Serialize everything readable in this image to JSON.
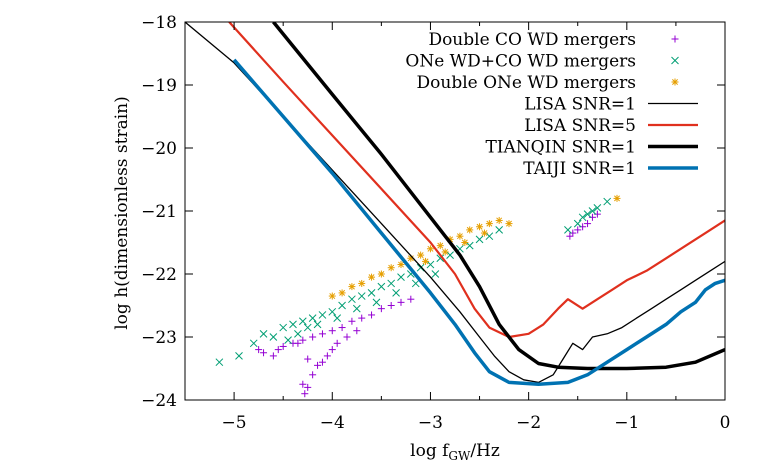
{
  "chart_data": {
    "type": "line",
    "xlabel": "log f",
    "xlabel_sub": "GW",
    "xlabel_unit": "/Hz",
    "ylabel": "log h(dimensionless strain)",
    "xlim": [
      -5.5,
      0
    ],
    "ylim": [
      -24,
      -18
    ],
    "xticks": [
      -5,
      -4,
      -3,
      -2,
      -1,
      0
    ],
    "yticks": [
      -24,
      -23,
      -22,
      -21,
      -20,
      -19,
      -18
    ],
    "xtick_labels": [
      "−5",
      "−4",
      "−3",
      "−2",
      "−1",
      "0"
    ],
    "ytick_labels": [
      "−24",
      "−23",
      "−22",
      "−21",
      "−20",
      "−19",
      "−18"
    ],
    "legend_position": "top-right",
    "colors": {
      "co_co": "#9400d3",
      "one_co": "#009e73",
      "one_one": "#e69f00",
      "lisa": "#000000",
      "lisa5": "#e0301e",
      "tianqin": "#000000",
      "taiji": "#0072b2"
    },
    "scatter_series": [
      {
        "name": "Double CO WD mergers",
        "marker": "+",
        "color": "#9400d3",
        "points": [
          [
            -4.55,
            -23.2
          ],
          [
            -4.6,
            -23.3
          ],
          [
            -4.7,
            -23.25
          ],
          [
            -4.75,
            -23.2
          ],
          [
            -4.4,
            -23.1
          ],
          [
            -4.3,
            -23.05
          ],
          [
            -4.2,
            -23.0
          ],
          [
            -4.1,
            -22.95
          ],
          [
            -4.0,
            -22.9
          ],
          [
            -3.9,
            -22.85
          ],
          [
            -3.8,
            -22.75
          ],
          [
            -3.7,
            -22.7
          ],
          [
            -3.6,
            -22.65
          ],
          [
            -3.5,
            -22.55
          ],
          [
            -3.4,
            -22.5
          ],
          [
            -3.3,
            -22.45
          ],
          [
            -3.2,
            -22.4
          ],
          [
            -4.25,
            -23.35
          ],
          [
            -4.15,
            -23.45
          ],
          [
            -4.2,
            -23.6
          ],
          [
            -4.25,
            -23.8
          ],
          [
            -4.1,
            -23.4
          ],
          [
            -4.05,
            -23.3
          ],
          [
            -4.0,
            -23.2
          ],
          [
            -3.95,
            -23.1
          ],
          [
            -4.3,
            -23.75
          ],
          [
            -4.28,
            -23.9
          ],
          [
            -4.35,
            -23.1
          ],
          [
            -4.5,
            -23.15
          ],
          [
            -3.85,
            -23.0
          ],
          [
            -3.75,
            -22.9
          ],
          [
            -1.55,
            -21.35
          ],
          [
            -1.5,
            -21.3
          ],
          [
            -1.45,
            -21.25
          ],
          [
            -1.4,
            -21.2
          ],
          [
            -1.35,
            -21.1
          ],
          [
            -1.3,
            -21.05
          ],
          [
            -1.58,
            -21.4
          ]
        ]
      },
      {
        "name": "ONe WD+CO WD mergers",
        "marker": "x",
        "color": "#009e73",
        "points": [
          [
            -5.15,
            -23.4
          ],
          [
            -4.95,
            -23.3
          ],
          [
            -4.8,
            -23.1
          ],
          [
            -4.7,
            -22.95
          ],
          [
            -4.6,
            -23.0
          ],
          [
            -4.5,
            -22.85
          ],
          [
            -4.4,
            -22.8
          ],
          [
            -4.3,
            -22.75
          ],
          [
            -4.2,
            -22.7
          ],
          [
            -4.1,
            -22.65
          ],
          [
            -4.0,
            -22.6
          ],
          [
            -3.9,
            -22.5
          ],
          [
            -3.8,
            -22.4
          ],
          [
            -3.7,
            -22.35
          ],
          [
            -3.6,
            -22.3
          ],
          [
            -3.5,
            -22.2
          ],
          [
            -3.4,
            -22.15
          ],
          [
            -3.3,
            -22.05
          ],
          [
            -3.2,
            -22.0
          ],
          [
            -3.1,
            -21.9
          ],
          [
            -3.0,
            -21.85
          ],
          [
            -2.9,
            -21.75
          ],
          [
            -2.8,
            -21.7
          ],
          [
            -2.7,
            -21.6
          ],
          [
            -2.6,
            -21.55
          ],
          [
            -2.5,
            -21.45
          ],
          [
            -2.4,
            -21.4
          ],
          [
            -2.3,
            -21.3
          ],
          [
            -4.45,
            -23.05
          ],
          [
            -4.35,
            -22.95
          ],
          [
            -4.25,
            -22.85
          ],
          [
            -4.15,
            -22.8
          ],
          [
            -3.95,
            -22.7
          ],
          [
            -3.75,
            -22.55
          ],
          [
            -3.55,
            -22.45
          ],
          [
            -3.35,
            -22.3
          ],
          [
            -3.15,
            -22.15
          ],
          [
            -2.95,
            -22.0
          ],
          [
            -1.6,
            -21.3
          ],
          [
            -1.5,
            -21.2
          ],
          [
            -1.4,
            -21.05
          ],
          [
            -1.3,
            -20.95
          ],
          [
            -1.2,
            -20.85
          ],
          [
            -1.45,
            -21.1
          ],
          [
            -1.35,
            -21.0
          ]
        ]
      },
      {
        "name": "Double ONe WD mergers",
        "marker": "*",
        "color": "#e69f00",
        "points": [
          [
            -4.0,
            -22.35
          ],
          [
            -3.9,
            -22.3
          ],
          [
            -3.8,
            -22.2
          ],
          [
            -3.7,
            -22.15
          ],
          [
            -3.6,
            -22.05
          ],
          [
            -3.5,
            -22.0
          ],
          [
            -3.4,
            -21.9
          ],
          [
            -3.3,
            -21.85
          ],
          [
            -3.2,
            -21.75
          ],
          [
            -3.1,
            -21.7
          ],
          [
            -3.0,
            -21.6
          ],
          [
            -2.9,
            -21.55
          ],
          [
            -2.8,
            -21.45
          ],
          [
            -2.7,
            -21.4
          ],
          [
            -2.6,
            -21.3
          ],
          [
            -2.5,
            -21.25
          ],
          [
            -2.4,
            -21.2
          ],
          [
            -2.3,
            -21.15
          ],
          [
            -2.2,
            -21.2
          ],
          [
            -3.05,
            -21.8
          ],
          [
            -2.85,
            -21.65
          ],
          [
            -2.65,
            -21.5
          ],
          [
            -2.45,
            -21.35
          ],
          [
            -1.1,
            -20.8
          ]
        ]
      }
    ],
    "line_series": [
      {
        "name": "LISA SNR=1",
        "color": "#000000",
        "width": 1.3,
        "points": [
          [
            -5.5,
            -18.0
          ],
          [
            -5.0,
            -18.65
          ],
          [
            -4.5,
            -19.5
          ],
          [
            -4.0,
            -20.35
          ],
          [
            -3.5,
            -21.2
          ],
          [
            -3.0,
            -22.05
          ],
          [
            -2.7,
            -22.6
          ],
          [
            -2.5,
            -23.0
          ],
          [
            -2.35,
            -23.3
          ],
          [
            -2.2,
            -23.55
          ],
          [
            -2.05,
            -23.68
          ],
          [
            -1.9,
            -23.72
          ],
          [
            -1.75,
            -23.6
          ],
          [
            -1.65,
            -23.35
          ],
          [
            -1.55,
            -23.1
          ],
          [
            -1.45,
            -23.2
          ],
          [
            -1.35,
            -23.0
          ],
          [
            -1.2,
            -22.95
          ],
          [
            -1.05,
            -22.85
          ],
          [
            -0.9,
            -22.7
          ],
          [
            -0.75,
            -22.55
          ],
          [
            -0.6,
            -22.4
          ],
          [
            -0.45,
            -22.25
          ],
          [
            -0.3,
            -22.1
          ],
          [
            -0.15,
            -21.95
          ],
          [
            0.0,
            -21.8
          ]
        ]
      },
      {
        "name": "LISA SNR=5",
        "color": "#e0301e",
        "width": 2.2,
        "points": [
          [
            -5.05,
            -18.0
          ],
          [
            -4.5,
            -18.95
          ],
          [
            -4.0,
            -19.8
          ],
          [
            -3.5,
            -20.65
          ],
          [
            -3.0,
            -21.5
          ],
          [
            -2.75,
            -22.0
          ],
          [
            -2.55,
            -22.55
          ],
          [
            -2.4,
            -22.85
          ],
          [
            -2.2,
            -23.0
          ],
          [
            -2.0,
            -22.95
          ],
          [
            -1.85,
            -22.8
          ],
          [
            -1.7,
            -22.55
          ],
          [
            -1.6,
            -22.4
          ],
          [
            -1.45,
            -22.55
          ],
          [
            -1.3,
            -22.4
          ],
          [
            -1.15,
            -22.25
          ],
          [
            -1.0,
            -22.1
          ],
          [
            -0.8,
            -21.95
          ],
          [
            -0.6,
            -21.75
          ],
          [
            -0.4,
            -21.55
          ],
          [
            -0.2,
            -21.35
          ],
          [
            0.0,
            -21.15
          ]
        ]
      },
      {
        "name": "TIANQIN SNR=1",
        "color": "#000000",
        "width": 3.5,
        "points": [
          [
            -4.6,
            -18.0
          ],
          [
            -4.0,
            -19.15
          ],
          [
            -3.5,
            -20.1
          ],
          [
            -3.0,
            -21.1
          ],
          [
            -2.7,
            -21.7
          ],
          [
            -2.5,
            -22.2
          ],
          [
            -2.3,
            -22.8
          ],
          [
            -2.1,
            -23.2
          ],
          [
            -1.9,
            -23.42
          ],
          [
            -1.7,
            -23.48
          ],
          [
            -1.4,
            -23.5
          ],
          [
            -1.0,
            -23.5
          ],
          [
            -0.6,
            -23.48
          ],
          [
            -0.3,
            -23.4
          ],
          [
            0.0,
            -23.2
          ]
        ]
      },
      {
        "name": "TAIJI SNR=1",
        "color": "#0072b2",
        "width": 3.5,
        "points": [
          [
            -5.0,
            -18.6
          ],
          [
            -4.5,
            -19.5
          ],
          [
            -4.0,
            -20.4
          ],
          [
            -3.5,
            -21.35
          ],
          [
            -3.0,
            -22.3
          ],
          [
            -2.75,
            -22.8
          ],
          [
            -2.55,
            -23.25
          ],
          [
            -2.4,
            -23.55
          ],
          [
            -2.2,
            -23.72
          ],
          [
            -1.9,
            -23.75
          ],
          [
            -1.6,
            -23.72
          ],
          [
            -1.4,
            -23.6
          ],
          [
            -1.2,
            -23.4
          ],
          [
            -1.0,
            -23.2
          ],
          [
            -0.8,
            -23.0
          ],
          [
            -0.6,
            -22.8
          ],
          [
            -0.45,
            -22.6
          ],
          [
            -0.3,
            -22.45
          ],
          [
            -0.2,
            -22.25
          ],
          [
            -0.1,
            -22.15
          ],
          [
            0.0,
            -22.1
          ]
        ]
      }
    ]
  }
}
